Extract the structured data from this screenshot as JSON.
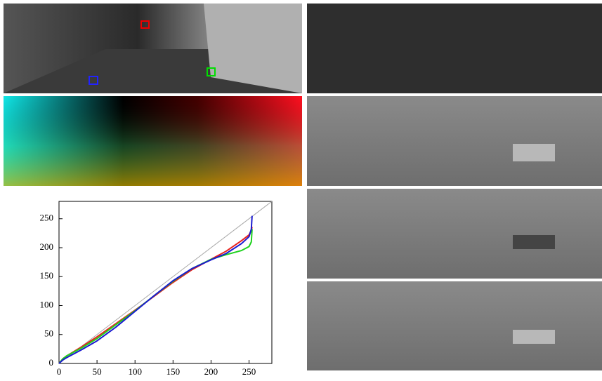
{
  "chart_data": {
    "type": "line",
    "xlim": [
      0,
      280
    ],
    "ylim": [
      0,
      280
    ],
    "xticks": [
      0,
      50,
      100,
      150,
      200,
      250
    ],
    "yticks": [
      0,
      50,
      100,
      150,
      200,
      250
    ],
    "series": [
      {
        "color": "#aaaaaa",
        "x": [
          0,
          280
        ],
        "values": [
          0,
          280
        ]
      },
      {
        "color": "#e8211c",
        "x": [
          0,
          5,
          10,
          20,
          30,
          50,
          75,
          100,
          125,
          150,
          175,
          200,
          220,
          240,
          250,
          253,
          254
        ],
        "values": [
          0,
          8,
          13,
          21,
          29,
          46,
          69,
          92,
          116,
          140,
          162,
          180,
          194,
          212,
          222,
          230,
          236
        ]
      },
      {
        "color": "#1ed21e",
        "x": [
          0,
          5,
          10,
          20,
          30,
          50,
          75,
          100,
          125,
          150,
          175,
          200,
          220,
          240,
          250,
          253,
          254
        ],
        "values": [
          0,
          8,
          13,
          20,
          27,
          43,
          67,
          91,
          117,
          142,
          164,
          180,
          188,
          195,
          202,
          210,
          232
        ]
      },
      {
        "color": "#1a1ad0",
        "x": [
          0,
          5,
          10,
          20,
          30,
          50,
          75,
          100,
          125,
          150,
          175,
          200,
          220,
          240,
          250,
          253,
          254
        ],
        "values": [
          0,
          6,
          10,
          17,
          24,
          39,
          63,
          90,
          117,
          143,
          164,
          179,
          190,
          207,
          219,
          232,
          255
        ]
      }
    ]
  }
}
